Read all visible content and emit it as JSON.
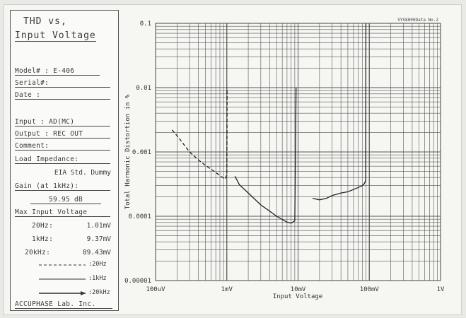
{
  "sheet": {
    "title_line1": "THD vs,",
    "title_line2": "Input Voltage",
    "model_label": "Model# : E-406",
    "serial_label": "Serial#:",
    "date_label": "Date   :",
    "input_label": "Input  : AD(MC)",
    "output_label": "Output : REC OUT",
    "comment_label": "Comment:",
    "load_label": "Load Impedance:",
    "load_value": "EIA Std. Dummy",
    "gain_label": "Gain (at 1kHz):",
    "gain_value": "59.95  dB",
    "max_label": "Max Input Voltage",
    "max_20hz_label": "20Hz:",
    "max_20hz_value": "1.01mV",
    "max_1khz_label": "1kHz:",
    "max_1khz_value": "9.37mV",
    "max_20khz_label": "20kHz:",
    "max_20khz_value": "89.43mV",
    "legend_20hz": ":20Hz",
    "legend_1khz": ":1kHz",
    "legend_20khz": ":20kHz",
    "footer": "ACCUPHASE Lab. Inc.",
    "sheet_id": "SYS8000Data No.2"
  },
  "chart_data": {
    "type": "line",
    "title": "",
    "xlabel": "Input Voltage",
    "ylabel": "Total Harmonic Distortion in %",
    "xscale": "log",
    "yscale": "log",
    "xlim_volts": [
      0.0001,
      1
    ],
    "ylim_percent": [
      1e-05,
      0.1
    ],
    "grid": true,
    "x_tick_labels": [
      "100uV",
      "1mV",
      "10mV",
      "100mV",
      "1V"
    ],
    "y_tick_labels": [
      "0.1",
      "0.01",
      "0.001",
      "0.0001",
      "0.00001"
    ],
    "series": [
      {
        "name": ":20Hz",
        "style": "dashed",
        "x_volts": [
          0.00017,
          0.0002,
          0.00025,
          0.0003,
          0.0004,
          0.0005,
          0.0006,
          0.0007,
          0.0008,
          0.0009,
          0.00095,
          0.001,
          0.00101
        ],
        "y_percent": [
          0.0022,
          0.0018,
          0.0013,
          0.001,
          0.00075,
          0.00062,
          0.00054,
          0.00048,
          0.00043,
          0.00039,
          0.00038,
          0.00044,
          0.01
        ]
      },
      {
        "name": ":1kHz",
        "style": "solid",
        "x_volts": [
          0.0013,
          0.0015,
          0.002,
          0.003,
          0.004,
          0.005,
          0.006,
          0.007,
          0.008,
          0.009,
          0.00937
        ],
        "y_percent": [
          0.00042,
          0.00031,
          0.00023,
          0.00015,
          0.00012,
          0.0001,
          8.9e-05,
          8.1e-05,
          7.8e-05,
          8.5e-05,
          0.01
        ]
      },
      {
        "name": ":20kHz",
        "style": "solid",
        "x_volts": [
          0.016,
          0.02,
          0.025,
          0.03,
          0.04,
          0.05,
          0.06,
          0.07,
          0.08,
          0.085,
          0.089,
          0.08943
        ],
        "y_percent": [
          0.00019,
          0.00018,
          0.00019,
          0.00021,
          0.00023,
          0.00024,
          0.00026,
          0.00028,
          0.0003,
          0.00032,
          0.00036,
          0.1
        ]
      }
    ]
  }
}
